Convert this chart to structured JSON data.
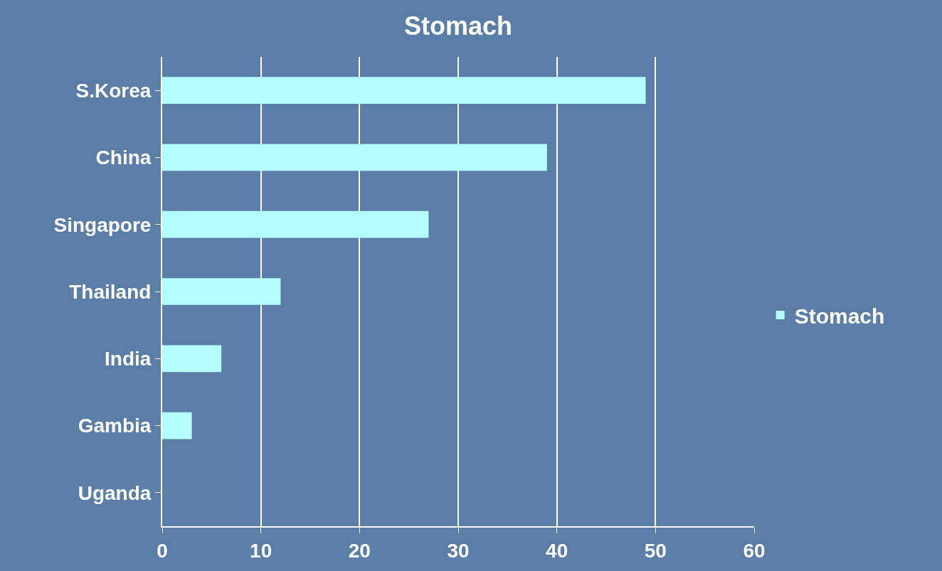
{
  "chart_data": {
    "type": "bar",
    "orientation": "horizontal",
    "title": "Stomach",
    "categories": [
      "S.Korea",
      "China",
      "Singapore",
      "Thailand",
      "India",
      "Gambia",
      "Uganda"
    ],
    "series": [
      {
        "name": "Stomach",
        "color": "#b3ffff",
        "values": [
          49,
          39,
          27,
          12,
          6,
          3,
          0
        ]
      }
    ],
    "xlim": [
      0,
      60
    ],
    "xticks": [
      0,
      10,
      20,
      30,
      40,
      50,
      60
    ],
    "grid": "x",
    "legend": "right"
  }
}
